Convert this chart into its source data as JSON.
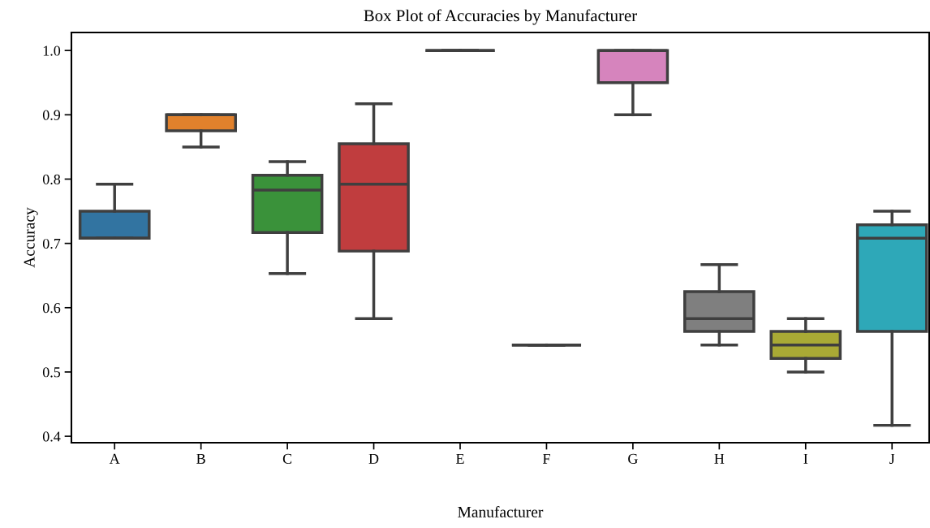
{
  "chart_data": {
    "type": "box",
    "title": "Box Plot of Accuracies by Manufacturer",
    "xlabel": "Manufacturer",
    "ylabel": "Accuracy",
    "categories": [
      "A",
      "B",
      "C",
      "D",
      "E",
      "F",
      "G",
      "H",
      "I",
      "J"
    ],
    "colors": [
      "#3274a1",
      "#e1812c",
      "#3a923a",
      "#c03d3e",
      "#3f3f3f",
      "#3f3f3f",
      "#d684bd",
      "#7f7f7f",
      "#a9aa35",
      "#2ea8b8"
    ],
    "boxes": [
      {
        "low": 0.708,
        "q1": 0.708,
        "median": 0.708,
        "q3": 0.75,
        "high": 0.792
      },
      {
        "low": 0.85,
        "q1": 0.875,
        "median": 0.9,
        "q3": 0.9,
        "high": 0.9
      },
      {
        "low": 0.653,
        "q1": 0.717,
        "median": 0.783,
        "q3": 0.806,
        "high": 0.827
      },
      {
        "low": 0.583,
        "q1": 0.688,
        "median": 0.792,
        "q3": 0.855,
        "high": 0.917
      },
      {
        "low": 1.0,
        "q1": 1.0,
        "median": 1.0,
        "q3": 1.0,
        "high": 1.0
      },
      {
        "low": 0.542,
        "q1": 0.542,
        "median": 0.542,
        "q3": 0.542,
        "high": 0.542
      },
      {
        "low": 0.9,
        "q1": 0.95,
        "median": 1.0,
        "q3": 1.0,
        "high": 1.0
      },
      {
        "low": 0.542,
        "q1": 0.563,
        "median": 0.583,
        "q3": 0.625,
        "high": 0.667
      },
      {
        "low": 0.5,
        "q1": 0.521,
        "median": 0.542,
        "q3": 0.563,
        "high": 0.583
      },
      {
        "low": 0.417,
        "q1": 0.563,
        "median": 0.708,
        "q3": 0.729,
        "high": 0.75
      }
    ],
    "ylim": [
      0.39,
      1.028
    ],
    "yticks": [
      {
        "value": 0.4,
        "label": "0.4"
      },
      {
        "value": 0.5,
        "label": "0.5"
      },
      {
        "value": 0.6,
        "label": "0.6"
      },
      {
        "value": 0.7,
        "label": "0.7"
      },
      {
        "value": 0.8,
        "label": "0.8"
      },
      {
        "value": 0.9,
        "label": "0.9"
      },
      {
        "value": 1.0,
        "label": "1.0"
      }
    ],
    "grid": false,
    "legend": false
  }
}
